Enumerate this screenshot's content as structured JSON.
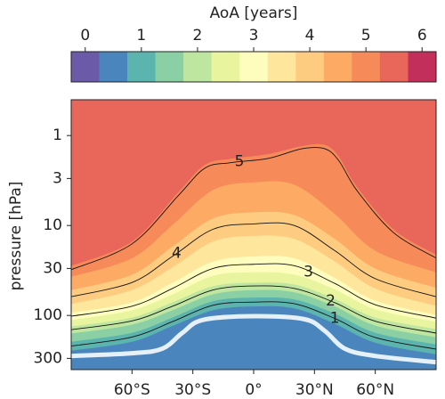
{
  "chart_data": {
    "type": "contour",
    "ylabel": "pressure [hPa]",
    "xlim": [
      -90,
      90
    ],
    "xticks": [
      {
        "value": -60,
        "label": "60°S"
      },
      {
        "value": -30,
        "label": "30°S"
      },
      {
        "value": 0,
        "label": "0°"
      },
      {
        "value": 30,
        "label": "30°N"
      },
      {
        "value": 60,
        "label": "60°N"
      }
    ],
    "ylim": [
      400,
      0.4
    ],
    "ylog": true,
    "yticks": [
      1,
      3,
      10,
      30,
      100,
      300
    ],
    "colorbar": {
      "label": "AoA [years]",
      "levels": [
        -0.25,
        0.25,
        0.75,
        1.25,
        1.75,
        2.25,
        2.75,
        3.25,
        3.75,
        4.25,
        4.75,
        5.25,
        5.75,
        6.25
      ],
      "colors": [
        "#6a5aa8",
        "#4a86bd",
        "#5cb4ae",
        "#8ad0a4",
        "#bfe6a0",
        "#e8f59e",
        "#fefdbe",
        "#fee79d",
        "#fdcc80",
        "#fcaa64",
        "#f68a59",
        "#e8665a",
        "#c22f5a"
      ],
      "ticks": [
        0,
        1,
        2,
        3,
        4,
        5,
        6
      ]
    },
    "boundaries": [
      {
        "level": 0.75,
        "x": [
          -90,
          -60,
          -40,
          -20,
          0,
          20,
          40,
          60,
          90
        ],
        "values": [
          245,
          195,
          130,
          87,
          79,
          83,
          123,
          200,
          269
        ]
      },
      {
        "level": 1.25,
        "x": [
          -90,
          -60,
          -40,
          -20,
          0,
          20,
          40,
          60,
          90
        ],
        "values": [
          195,
          155,
          105,
          69,
          63,
          66,
          95,
          155,
          209
        ]
      },
      {
        "level": 1.75,
        "x": [
          -90,
          -60,
          -40,
          -20,
          0,
          20,
          40,
          60,
          90
        ],
        "values": [
          158,
          126,
          87,
          58,
          52,
          55,
          79,
          129,
          174
        ]
      },
      {
        "level": 2.25,
        "x": [
          -90,
          -60,
          -40,
          -20,
          0,
          20,
          40,
          60,
          90
        ],
        "values": [
          132,
          105,
          71,
          47,
          43,
          45,
          65,
          105,
          141
        ]
      },
      {
        "level": 2.75,
        "x": [
          -90,
          -60,
          -40,
          -20,
          0,
          20,
          40,
          60,
          90
        ],
        "values": [
          112,
          87,
          58,
          36,
          33,
          35,
          51,
          85,
          117
        ]
      },
      {
        "level": 3.25,
        "x": [
          -90,
          -60,
          -40,
          -20,
          0,
          20,
          40,
          60,
          90
        ],
        "values": [
          93,
          71,
          43,
          25,
          22,
          23,
          38,
          68,
          98
        ]
      },
      {
        "level": 3.75,
        "x": [
          -90,
          -60,
          -40,
          -20,
          0,
          20,
          40,
          60,
          90
        ],
        "values": [
          74,
          52,
          29,
          15,
          13,
          14,
          25,
          50,
          78
        ]
      },
      {
        "level": 4.25,
        "x": [
          -90,
          -60,
          -40,
          -20,
          0,
          20,
          40,
          60,
          90
        ],
        "values": [
          52,
          35,
          17,
          8.3,
          7.1,
          7.6,
          14,
          30,
          49
        ]
      },
      {
        "level": 4.75,
        "x": [
          -90,
          -60,
          -40,
          -20,
          0,
          20,
          40,
          60,
          90
        ],
        "values": [
          37,
          23,
          9.8,
          4,
          3.3,
          3.5,
          7.4,
          19,
          33
        ]
      },
      {
        "level": 5.25,
        "x": [
          -90,
          -60,
          -37,
          -24,
          -11,
          7,
          24,
          35,
          42,
          51,
          69,
          90
        ],
        "values": [
          28,
          15,
          4.2,
          2.1,
          1.8,
          1.6,
          1.3,
          1.26,
          1.7,
          3.7,
          11,
          21
        ]
      }
    ],
    "contour_lines": [
      {
        "level": 1,
        "x": [
          -90,
          -60,
          -40,
          -20,
          0,
          20,
          40,
          60,
          90
        ],
        "values": [
          219,
          174,
          117,
          77,
          71,
          74,
          108,
          176,
          237
        ]
      },
      {
        "level": 2,
        "x": [
          -90,
          -60,
          -40,
          -20,
          0,
          20,
          40,
          60,
          90
        ],
        "values": [
          144,
          115,
          79,
          52,
          47,
          50,
          72,
          116,
          157
        ]
      },
      {
        "level": 3,
        "x": [
          -90,
          -60,
          -40,
          -20,
          0,
          20,
          40,
          60,
          90
        ],
        "values": [
          102,
          79,
          50,
          30,
          27,
          28,
          44,
          76,
          107
        ]
      },
      {
        "level": 4,
        "x": [
          -90,
          -60,
          -40,
          -20,
          0,
          20,
          40,
          60,
          90
        ],
        "values": [
          62,
          43,
          22,
          11,
          9.6,
          10,
          19,
          39,
          62
        ]
      },
      {
        "level": 5,
        "x": [
          -90,
          -60,
          -37,
          -24,
          -11,
          7,
          24,
          35,
          42,
          51,
          69,
          90
        ],
        "values": [
          31,
          16,
          4.6,
          2.3,
          2.0,
          1.8,
          1.4,
          1.4,
          1.9,
          4.1,
          12,
          23
        ]
      }
    ],
    "lines": [
      {
        "color": "#e6f0f8",
        "x": [
          -90,
          -60,
          -45,
          -35,
          -25,
          0,
          25,
          35,
          45,
          60,
          90
        ],
        "values": [
          282,
          263,
          234,
          155,
          112,
          102,
          110,
          148,
          234,
          282,
          331
        ]
      }
    ]
  }
}
